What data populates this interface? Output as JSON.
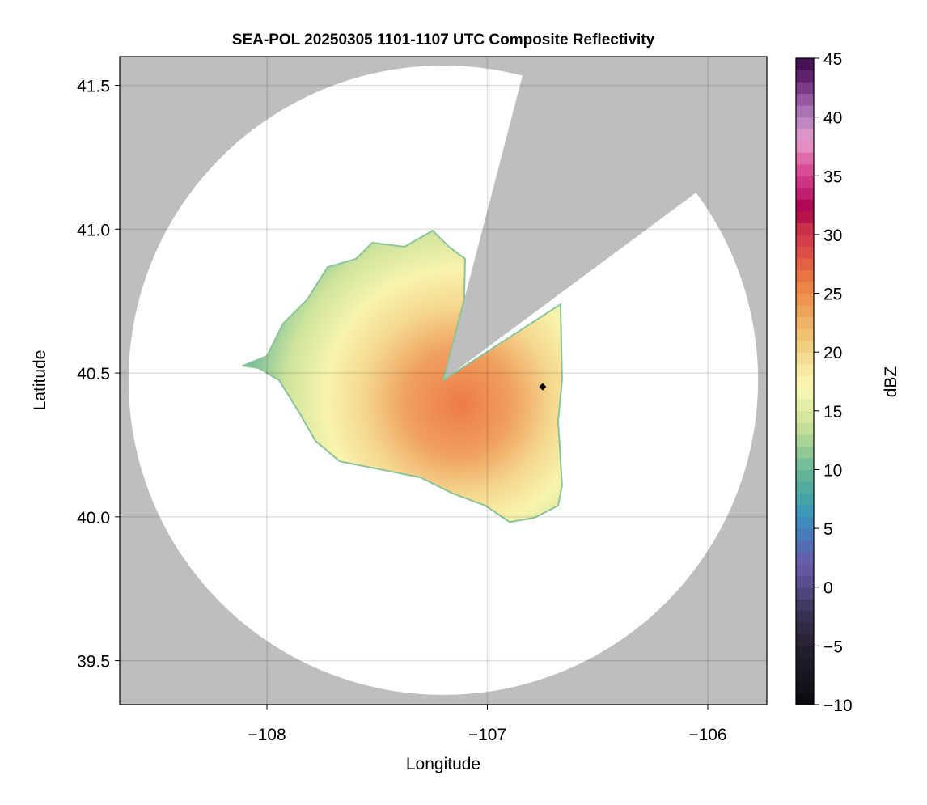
{
  "chart_data": {
    "type": "heatmap",
    "title": "SEA-POL 20250305 1101-1107 UTC Composite Reflectivity",
    "xlabel": "Longitude",
    "ylabel": "Latitude",
    "xlim": [
      -108.668,
      -105.732
    ],
    "ylim": [
      39.347,
      41.6
    ],
    "xticks": [
      -108,
      -107,
      -106
    ],
    "xtick_labels": [
      "−108",
      "−107",
      "−106"
    ],
    "yticks": [
      39.5,
      40.0,
      40.5,
      41.0,
      41.5
    ],
    "ytick_labels": [
      "39.5",
      "40.0",
      "40.5",
      "41.0",
      "41.5"
    ],
    "grid": true,
    "background_color": "#bebebe",
    "radar_center": [
      -107.2,
      40.475
    ],
    "coverage_radius_deg": [
      1.428,
      1.094
    ],
    "blocked_sector_edges": [
      [
        -106.844,
        41.524
      ],
      [
        -106.062,
        41.122
      ]
    ],
    "echo_outline": [
      [
        -108.11,
        40.525
      ],
      [
        -108.0,
        40.559
      ],
      [
        -107.927,
        40.672
      ],
      [
        -107.817,
        40.756
      ],
      [
        -107.725,
        40.868
      ],
      [
        -107.596,
        40.897
      ],
      [
        -107.523,
        40.953
      ],
      [
        -107.376,
        40.939
      ],
      [
        -107.248,
        40.995
      ],
      [
        -107.174,
        40.939
      ],
      [
        -107.101,
        40.897
      ],
      [
        -107.105,
        40.756
      ],
      [
        -107.2,
        40.475
      ],
      [
        -106.668,
        40.739
      ],
      [
        -106.661,
        40.475
      ],
      [
        -106.679,
        40.334
      ],
      [
        -106.661,
        40.109
      ],
      [
        -106.679,
        40.039
      ],
      [
        -106.789,
        39.996
      ],
      [
        -106.899,
        39.982
      ],
      [
        -107.009,
        40.039
      ],
      [
        -107.156,
        40.081
      ],
      [
        -107.303,
        40.137
      ],
      [
        -107.486,
        40.165
      ],
      [
        -107.67,
        40.193
      ],
      [
        -107.78,
        40.264
      ],
      [
        -107.853,
        40.362
      ],
      [
        -107.945,
        40.475
      ],
      [
        -108.037,
        40.517
      ]
    ],
    "echo_typical_dbz": {
      "center": 26,
      "mid": 18,
      "edge": 10
    },
    "marker": {
      "lon": -106.749,
      "lat": 40.452,
      "shape": "diamond",
      "color": "#000000"
    },
    "colorbar": {
      "label": "dBZ",
      "range": [
        -10,
        45
      ],
      "step": 1,
      "ticks": [
        -10,
        -5,
        0,
        5,
        10,
        15,
        20,
        25,
        30,
        35,
        40,
        45
      ],
      "tick_labels": [
        "−10",
        "−5",
        "0",
        "5",
        "10",
        "15",
        "20",
        "25",
        "30",
        "35",
        "40",
        "45"
      ],
      "anchors": [
        [
          -10,
          "#0b0a10"
        ],
        [
          -5,
          "#25202f"
        ],
        [
          -2,
          "#3a3355"
        ],
        [
          0,
          "#564a88"
        ],
        [
          2,
          "#6a5aa8"
        ],
        [
          4,
          "#4a73b8"
        ],
        [
          6,
          "#3b93c0"
        ],
        [
          8,
          "#4aa8a0"
        ],
        [
          10,
          "#68b898"
        ],
        [
          12,
          "#9fcf95"
        ],
        [
          14,
          "#cde39a"
        ],
        [
          16,
          "#ecf2a8"
        ],
        [
          17,
          "#fbf8b4"
        ],
        [
          19,
          "#f5e49a"
        ],
        [
          21,
          "#f0c878"
        ],
        [
          23,
          "#eeaa62"
        ],
        [
          25,
          "#ee8c4a"
        ],
        [
          27,
          "#e86a40"
        ],
        [
          29,
          "#d9454a"
        ],
        [
          31,
          "#c22848"
        ],
        [
          32,
          "#a8004a"
        ],
        [
          34,
          "#c8287a"
        ],
        [
          36,
          "#dc5aa0"
        ],
        [
          38,
          "#e89ccc"
        ],
        [
          40,
          "#b480c0"
        ],
        [
          42,
          "#8a4a96"
        ],
        [
          43,
          "#6a2a7a"
        ],
        [
          45,
          "#3c0a4c"
        ]
      ]
    }
  }
}
